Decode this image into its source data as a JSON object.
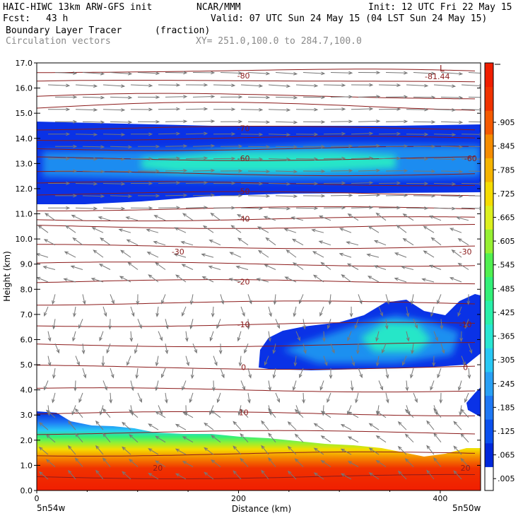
{
  "header": {
    "model": "HAIC-HIWC 13km ARW-GFS init",
    "org": "NCAR/MMM",
    "init": "Init: 12 UTC Fri 22 May 15",
    "fcst_label": "Fcst:",
    "fcst_value": "43 h",
    "valid": "Valid: 07 UTC Sun 24 May 15 (04 LST Sun 24 May 15)",
    "field": "Boundary Layer Tracer",
    "units": "(fraction)",
    "vectors": "Circulation vectors",
    "xy": "XY= 251.0,100.0 to 284.7,100.0"
  },
  "chart_data": {
    "type": "heatmap",
    "xlabel": "Distance (km)",
    "ylabel": "Height (km)",
    "xlim": [
      0,
      440
    ],
    "ylim": [
      0,
      17
    ],
    "x_ticks": [
      0,
      200,
      400
    ],
    "y_ticks": [
      "0.0",
      "1.0",
      "2.0",
      "3.0",
      "4.0",
      "5.0",
      "6.0",
      "7.0",
      "8.0",
      "9.0",
      "10.0",
      "11.0",
      "12.0",
      "13.0",
      "14.0",
      "15.0",
      "16.0",
      "17.0"
    ],
    "x_endpoints": [
      "5n54w",
      "5n50w"
    ],
    "colorbar_labels": [
      ".005",
      ".065",
      ".125",
      ".185",
      ".245",
      ".305",
      ".365",
      ".425",
      ".485",
      ".545",
      ".605",
      ".665",
      ".725",
      ".785",
      ".845",
      ".905"
    ],
    "colorbar_colors": [
      "#ffffff",
      "#0028dc",
      "#0a50ee",
      "#1e78f5",
      "#28a0f5",
      "#28c8f5",
      "#28e6d2",
      "#28f0aa",
      "#32f078",
      "#50f050",
      "#96f032",
      "#dcf01e",
      "#f5dc00",
      "#f5b400",
      "#f58c00",
      "#f55a00",
      "#f03200",
      "#f01e00"
    ],
    "isotherm_labels": [
      {
        "value": "-80",
        "x": 205,
        "y": 16.5
      },
      {
        "value": "-70",
        "x": 205,
        "y": 14.4
      },
      {
        "value": "-60",
        "x": 205,
        "y": 13.2
      },
      {
        "value": "-60",
        "x": 430,
        "y": 13.2
      },
      {
        "value": "-50",
        "x": 205,
        "y": 11.9
      },
      {
        "value": "-40",
        "x": 205,
        "y": 10.8
      },
      {
        "value": "-30",
        "x": 140,
        "y": 9.5
      },
      {
        "value": "-30",
        "x": 425,
        "y": 9.5
      },
      {
        "value": "-20",
        "x": 205,
        "y": 8.3
      },
      {
        "value": "-10",
        "x": 205,
        "y": 6.6
      },
      {
        "value": "-10",
        "x": 425,
        "y": 6.6
      },
      {
        "value": "0",
        "x": 205,
        "y": 4.9
      },
      {
        "value": "0",
        "x": 425,
        "y": 4.9
      },
      {
        "value": "10",
        "x": 205,
        "y": 3.1
      },
      {
        "value": "20",
        "x": 120,
        "y": 0.9
      },
      {
        "value": "20",
        "x": 425,
        "y": 0.9
      }
    ],
    "low_marker": {
      "label": "L",
      "value": "-81.44",
      "x": 405,
      "y": 16.6
    },
    "contour_levels_km": [
      0.55,
      1.45,
      2.3,
      3.05,
      4.0,
      4.9,
      5.8,
      6.6,
      7.45,
      8.3,
      9.0,
      9.7,
      10.5,
      10.8,
      11.2,
      11.8,
      12.2,
      12.6,
      13.2,
      13.6,
      14.0,
      14.4,
      15.2,
      15.6,
      16.2,
      16.6
    ],
    "tracer": {
      "upper_band": {
        "fraction_max": 0.305,
        "height_km": [
          11.5,
          14.6
        ]
      },
      "mid_cloud": {
        "fraction_max": 0.305,
        "height_km": [
          4.9,
          7.7
        ],
        "x_km": [
          220,
          440
        ]
      },
      "boundary_layer": {
        "fraction_max": 0.905,
        "top_km": 3.1
      }
    }
  }
}
